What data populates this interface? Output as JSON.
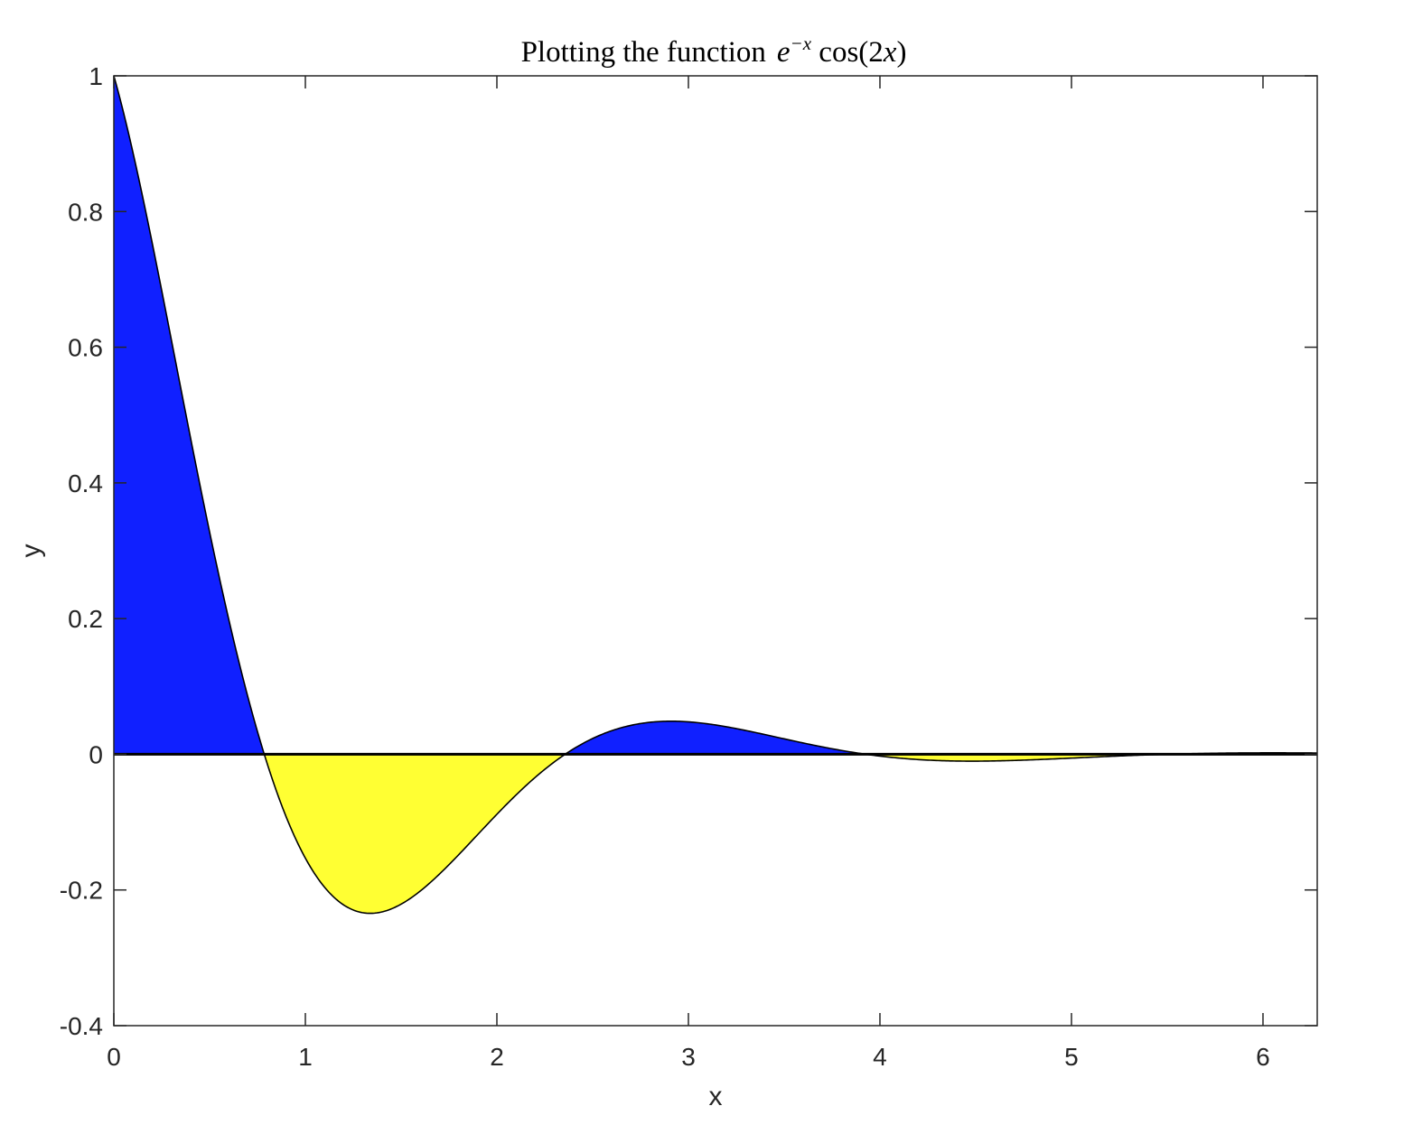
{
  "chart_data": {
    "type": "area",
    "title": "Plotting the function",
    "title_math": {
      "base": "e",
      "exponent": "−x",
      "rest_prefix": " cos(2",
      "rest_var": "x",
      "rest_suffix": ")"
    },
    "xlabel": "x",
    "ylabel": "y",
    "xlim": [
      0,
      6.2832
    ],
    "ylim": [
      -0.4,
      1
    ],
    "xticks": [
      0,
      1,
      2,
      3,
      4,
      5,
      6
    ],
    "xtick_labels": [
      "0",
      "1",
      "2",
      "3",
      "4",
      "5",
      "6"
    ],
    "yticks": [
      -0.4,
      -0.2,
      0,
      0.2,
      0.4,
      0.6,
      0.8,
      1
    ],
    "ytick_labels": [
      "-0.4",
      "-0.2",
      "0",
      "0.2",
      "0.4",
      "0.6",
      "0.8",
      "1"
    ],
    "grid": false,
    "function": "exp(-x)*cos(2*x)",
    "positive_fill_color": "#1020ff",
    "negative_fill_color": "#ffff33",
    "line_color": "#000000",
    "x": [
      0,
      0.25,
      0.5,
      0.75,
      0.7854,
      1.0,
      1.25,
      1.337,
      1.5,
      1.75,
      2.0,
      2.25,
      2.3562,
      2.5,
      2.75,
      2.908,
      3.0,
      3.25,
      3.5,
      3.75,
      3.927,
      4.0,
      4.25,
      4.479,
      4.75,
      5.0,
      5.25,
      5.4978,
      5.75,
      6.0,
      6.2832
    ],
    "y": [
      1.0,
      0.6835,
      0.3277,
      0.0334,
      0.0,
      -0.1531,
      -0.2298,
      -0.2354,
      -0.2209,
      -0.1627,
      -0.0885,
      -0.0222,
      0.0,
      0.0233,
      0.0452,
      0.0485,
      0.0476,
      0.0365,
      0.0228,
      0.0081,
      0.0,
      -0.0027,
      -0.0087,
      -0.0103,
      -0.0087,
      -0.0057,
      -0.0025,
      0.0,
      0.0015,
      0.0021,
      0.0019
    ]
  }
}
